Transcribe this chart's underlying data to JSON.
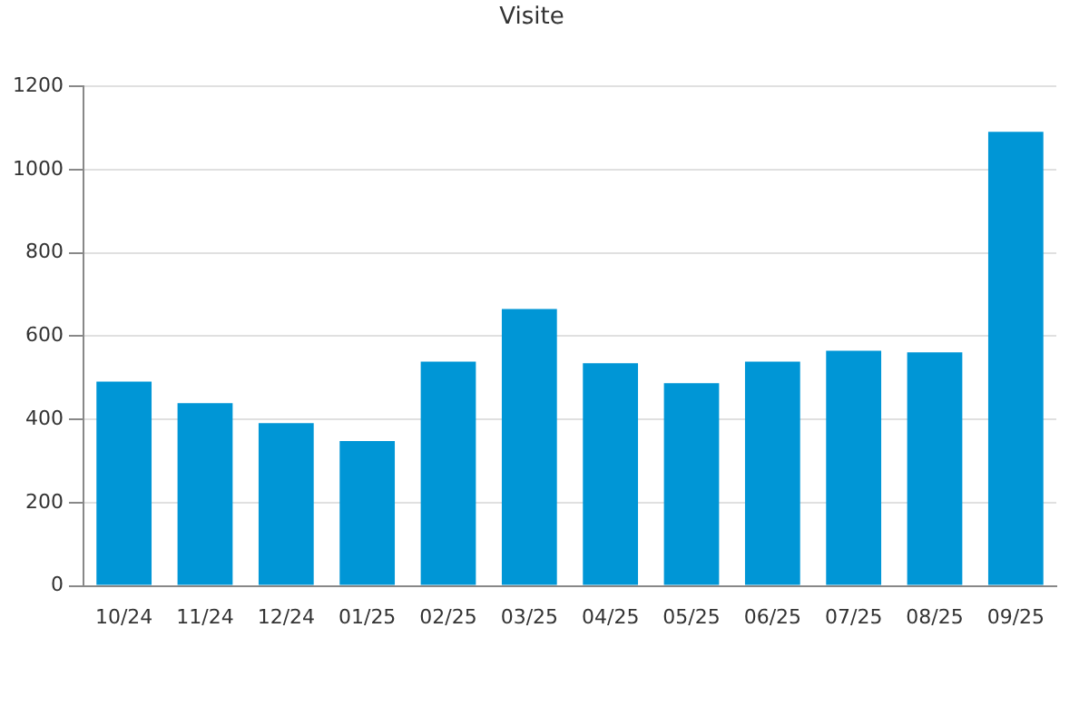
{
  "chart_data": {
    "type": "bar",
    "title": "Visite",
    "categories": [
      "10/24",
      "11/24",
      "12/24",
      "01/25",
      "02/25",
      "03/25",
      "04/25",
      "05/25",
      "06/25",
      "07/25",
      "08/25",
      "09/25"
    ],
    "values": [
      491,
      439,
      391,
      348,
      539,
      665,
      535,
      487,
      539,
      565,
      561,
      1091
    ],
    "color": "#0096d6",
    "ylim": [
      0,
      1200
    ],
    "yticks": [
      0,
      200,
      400,
      600,
      800,
      1000,
      1200
    ],
    "grid": "y"
  }
}
